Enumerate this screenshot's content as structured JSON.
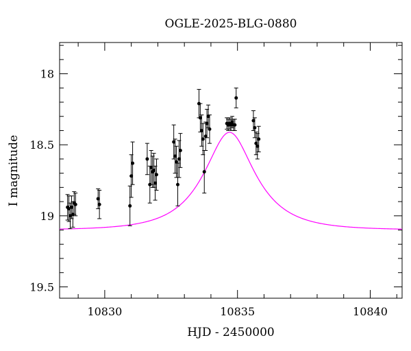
{
  "chart_data": {
    "type": "scatter",
    "title": "OGLE-2025-BLG-0880",
    "xlabel": "HJD - 2450000",
    "ylabel": "I magnitude",
    "xlim": [
      10828.3,
      10841.2
    ],
    "ylim": [
      19.58,
      17.78
    ],
    "y_inverted": true,
    "x_ticks": [
      10830,
      10835,
      10840
    ],
    "x_tick_labels": [
      "10830",
      "10835",
      "10840"
    ],
    "y_ticks": [
      18,
      18.5,
      19,
      19.5
    ],
    "y_tick_labels": [
      "18",
      "18.5",
      "19",
      "19.5"
    ],
    "grid": false,
    "legend": null,
    "model_color": "#ff00ff",
    "point_color": "#000000",
    "model": {
      "type": "paczynski",
      "t0": 10834.7,
      "tE": 1.8,
      "u0": 0.47,
      "I_source": 19.1,
      "f_source": 0.68
    },
    "series": [
      {
        "x": [
          10828.6,
          10828.65,
          10828.7,
          10828.75,
          10828.8,
          10828.85,
          10828.9,
          10829.75,
          10829.8,
          10830.95,
          10831.0,
          10831.05,
          10831.6,
          10831.7,
          10831.75,
          10831.8,
          10831.85,
          10831.9,
          10831.95,
          10832.6,
          10832.65,
          10832.7,
          10832.75,
          10832.8,
          10832.85,
          10833.55,
          10833.6,
          10833.65,
          10833.7,
          10833.75,
          10833.8,
          10833.85,
          10833.9,
          10833.95,
          10834.6,
          10834.65,
          10834.7,
          10834.75,
          10834.8,
          10834.85,
          10834.9,
          10834.95,
          10835.6,
          10835.65,
          10835.7,
          10835.75,
          10835.8
        ],
        "y": [
          18.94,
          18.95,
          19.0,
          18.94,
          18.99,
          18.91,
          18.92,
          18.88,
          18.92,
          18.93,
          18.72,
          18.63,
          18.6,
          18.78,
          18.66,
          18.69,
          18.68,
          18.77,
          18.71,
          18.48,
          18.58,
          18.62,
          18.78,
          18.6,
          18.54,
          18.21,
          18.31,
          18.4,
          18.46,
          18.69,
          18.44,
          18.35,
          18.3,
          18.39,
          18.35,
          18.36,
          18.35,
          18.36,
          18.34,
          18.36,
          18.36,
          18.17,
          18.33,
          18.38,
          18.49,
          18.51,
          18.46
        ],
        "yerr": [
          0.09,
          0.09,
          0.09,
          0.08,
          0.09,
          0.08,
          0.08,
          0.07,
          0.1,
          0.14,
          0.15,
          0.15,
          0.11,
          0.13,
          0.12,
          0.11,
          0.12,
          0.12,
          0.11,
          0.12,
          0.12,
          0.11,
          0.15,
          0.13,
          0.12,
          0.1,
          0.1,
          0.11,
          0.11,
          0.15,
          0.1,
          0.1,
          0.08,
          0.1,
          0.04,
          0.04,
          0.04,
          0.04,
          0.04,
          0.04,
          0.04,
          0.07,
          0.07,
          0.07,
          0.08,
          0.09,
          0.09
        ]
      }
    ]
  }
}
